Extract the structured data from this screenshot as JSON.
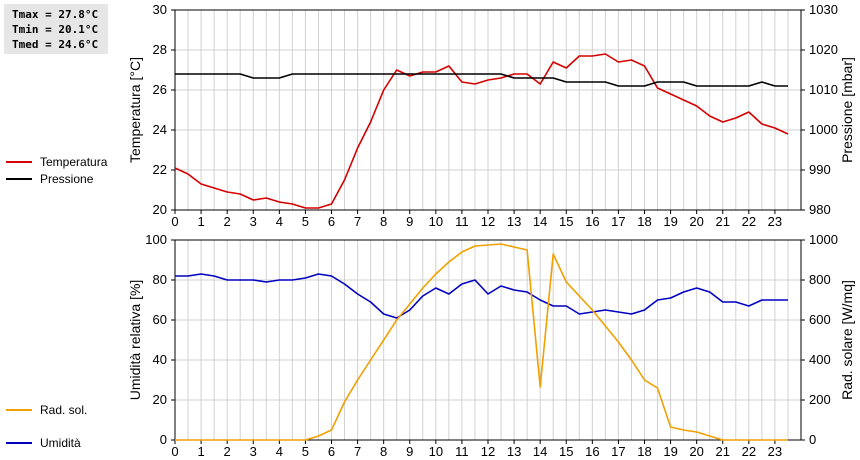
{
  "stats": [
    {
      "label": "Tmax",
      "value": "27.8°C"
    },
    {
      "label": "Tmin",
      "value": "20.1°C"
    },
    {
      "label": "Tmed",
      "value": "24.6°C"
    }
  ],
  "colors": {
    "temperature": "#d40000",
    "pressure": "#000000",
    "humidity": "#0000c0",
    "solar": "#f0a000",
    "grid": "#d0d0d0"
  },
  "chart_data": [
    {
      "type": "line",
      "xlim": [
        0,
        24
      ],
      "xticks": [
        0,
        1,
        2,
        3,
        4,
        5,
        6,
        7,
        8,
        9,
        10,
        11,
        12,
        13,
        14,
        15,
        16,
        17,
        18,
        19,
        20,
        21,
        22,
        23
      ],
      "grid": true,
      "y_left": {
        "label": "Temperatura [°C]",
        "lim": [
          20,
          30
        ],
        "ticks": [
          20,
          22,
          24,
          26,
          28,
          30
        ]
      },
      "y_right": {
        "label": "Pressione [mbar]",
        "lim": [
          980,
          1030
        ],
        "ticks": [
          980,
          990,
          1000,
          1010,
          1020,
          1030
        ]
      },
      "legend": "left",
      "series": [
        {
          "name": "Temperatura",
          "axis": "left",
          "x": [
            0,
            0.5,
            1,
            1.5,
            2,
            2.5,
            3,
            3.5,
            4,
            4.5,
            5,
            5.5,
            6,
            6.5,
            7,
            7.5,
            8,
            8.5,
            9,
            9.5,
            10,
            10.5,
            11,
            11.5,
            12,
            12.5,
            13,
            13.5,
            14,
            14.5,
            15,
            15.5,
            16,
            16.5,
            17,
            17.5,
            18,
            18.5,
            19,
            19.5,
            20,
            20.5,
            21,
            21.5,
            22,
            22.5,
            23,
            23.5
          ],
          "values": [
            22.1,
            21.8,
            21.3,
            21.1,
            20.9,
            20.8,
            20.5,
            20.6,
            20.4,
            20.3,
            20.1,
            20.1,
            20.3,
            21.5,
            23.1,
            24.4,
            26.0,
            27.0,
            26.7,
            26.9,
            26.9,
            27.2,
            26.4,
            26.3,
            26.5,
            26.6,
            26.8,
            26.8,
            26.3,
            27.4,
            27.1,
            27.7,
            27.7,
            27.8,
            27.4,
            27.5,
            27.2,
            26.1,
            25.8,
            25.5,
            25.2,
            24.7,
            24.4,
            24.6,
            24.9,
            24.3,
            24.1,
            23.8
          ]
        },
        {
          "name": "Pressione",
          "axis": "right",
          "x": [
            0,
            0.5,
            1,
            1.5,
            2,
            2.5,
            3,
            3.5,
            4,
            4.5,
            5,
            5.5,
            6,
            6.5,
            7,
            7.5,
            8,
            8.5,
            9,
            9.5,
            10,
            10.5,
            11,
            11.5,
            12,
            12.5,
            13,
            13.5,
            14,
            14.5,
            15,
            15.5,
            16,
            16.5,
            17,
            17.5,
            18,
            18.5,
            19,
            19.5,
            20,
            20.5,
            21,
            21.5,
            22,
            22.5,
            23,
            23.5
          ],
          "values": [
            1014,
            1014,
            1014,
            1014,
            1014,
            1014,
            1013,
            1013,
            1013,
            1014,
            1014,
            1014,
            1014,
            1014,
            1014,
            1014,
            1014,
            1014,
            1014,
            1014,
            1014,
            1014,
            1014,
            1014,
            1014,
            1014,
            1013,
            1013,
            1013,
            1013,
            1012,
            1012,
            1012,
            1012,
            1011,
            1011,
            1011,
            1012,
            1012,
            1012,
            1011,
            1011,
            1011,
            1011,
            1011,
            1012,
            1011,
            1011
          ]
        }
      ]
    },
    {
      "type": "line",
      "xlim": [
        0,
        24
      ],
      "xticks": [
        0,
        1,
        2,
        3,
        4,
        5,
        6,
        7,
        8,
        9,
        10,
        11,
        12,
        13,
        14,
        15,
        16,
        17,
        18,
        19,
        20,
        21,
        22,
        23
      ],
      "grid": true,
      "y_left": {
        "label": "Umidità relativa [%]",
        "lim": [
          0,
          100
        ],
        "ticks": [
          0,
          20,
          40,
          60,
          80,
          100
        ]
      },
      "y_right": {
        "label": "Rad. solare [W/mq]",
        "lim": [
          0,
          1000
        ],
        "ticks": [
          0,
          200,
          400,
          600,
          800,
          1000
        ]
      },
      "legend": "left",
      "series": [
        {
          "name": "Umidità",
          "axis": "left",
          "x": [
            0,
            0.5,
            1,
            1.5,
            2,
            2.5,
            3,
            3.5,
            4,
            4.5,
            5,
            5.5,
            6,
            6.5,
            7,
            7.5,
            8,
            8.5,
            9,
            9.5,
            10,
            10.5,
            11,
            11.5,
            12,
            12.5,
            13,
            13.5,
            14,
            14.5,
            15,
            15.5,
            16,
            16.5,
            17,
            17.5,
            18,
            18.5,
            19,
            19.5,
            20,
            20.5,
            21,
            21.5,
            22,
            22.5,
            23,
            23.5
          ],
          "values": [
            82,
            82,
            83,
            82,
            80,
            80,
            80,
            79,
            80,
            80,
            81,
            83,
            82,
            78,
            73,
            69,
            63,
            61,
            65,
            72,
            76,
            73,
            78,
            80,
            73,
            77,
            75,
            74,
            70,
            67,
            67,
            63,
            64,
            65,
            64,
            63,
            65,
            70,
            71,
            74,
            76,
            74,
            69,
            69,
            67,
            70,
            70,
            70
          ]
        },
        {
          "name": "Rad. sol.",
          "axis": "right",
          "x": [
            0,
            1,
            2,
            3,
            4,
            5,
            5.5,
            6,
            6.5,
            7,
            7.5,
            8,
            8.5,
            9,
            9.5,
            10,
            10.5,
            11,
            11.5,
            12,
            12.5,
            13,
            13.5,
            14,
            14.5,
            15,
            15.5,
            16,
            16.5,
            17,
            17.5,
            18,
            18.5,
            19,
            19.5,
            20,
            21,
            22,
            23,
            23.5
          ],
          "values": [
            0,
            0,
            0,
            0,
            0,
            0,
            20,
            50,
            190,
            300,
            400,
            500,
            600,
            680,
            760,
            830,
            890,
            940,
            970,
            975,
            980,
            965,
            950,
            265,
            930,
            790,
            720,
            650,
            570,
            490,
            400,
            300,
            260,
            65,
            50,
            40,
            0,
            0,
            0,
            0
          ]
        }
      ]
    }
  ]
}
